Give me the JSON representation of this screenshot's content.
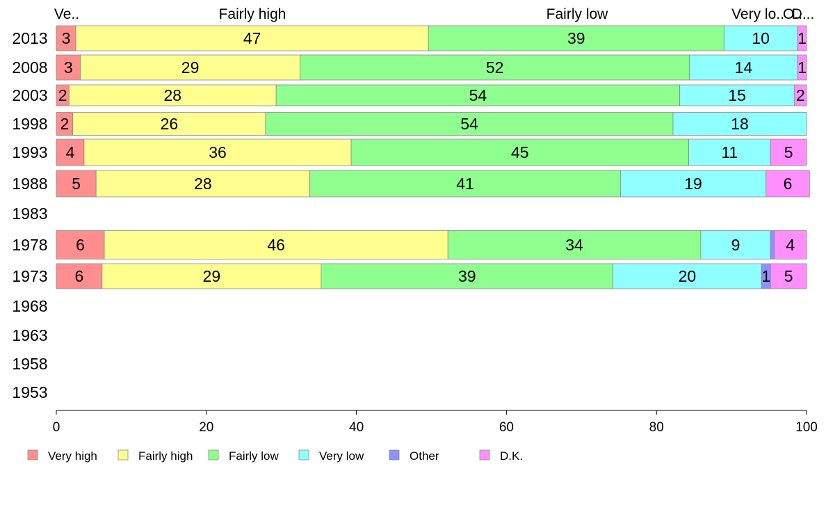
{
  "chart_data": {
    "type": "bar",
    "orientation": "horizontal",
    "stacked": true,
    "categories": [
      "2013",
      "2008",
      "2003",
      "1998",
      "1993",
      "1988",
      "1983",
      "1978",
      "1973",
      "1968",
      "1963",
      "1958",
      "1953"
    ],
    "series": [
      {
        "name": "Very high",
        "color": "#ff8f8f",
        "values": [
          2.6,
          3.2,
          1.7,
          2.2,
          3.7,
          5.3,
          null,
          6.4,
          6.1,
          null,
          null,
          null,
          null
        ],
        "labels": [
          "3",
          "3",
          "2",
          "2",
          "4",
          "5",
          "",
          "6",
          "6",
          "",
          "",
          "",
          ""
        ]
      },
      {
        "name": "Fairly high",
        "color": "#ffff8f",
        "values": [
          47.0,
          29.3,
          27.6,
          25.7,
          35.6,
          28.5,
          null,
          45.8,
          29.2,
          null,
          null,
          null,
          null
        ],
        "labels": [
          "47",
          "29",
          "28",
          "26",
          "36",
          "28",
          "",
          "46",
          "29",
          "",
          "",
          "",
          ""
        ]
      },
      {
        "name": "Fairly low",
        "color": "#8fff8f",
        "values": [
          39.4,
          51.9,
          53.8,
          54.3,
          45.0,
          41.4,
          null,
          33.7,
          38.9,
          null,
          null,
          null,
          null
        ],
        "labels": [
          "39",
          "52",
          "54",
          "54",
          "45",
          "41",
          "",
          "34",
          "39",
          "",
          "",
          "",
          ""
        ]
      },
      {
        "name": "Very low",
        "color": "#8fffff",
        "values": [
          9.8,
          14.4,
          15.3,
          17.8,
          10.9,
          19.4,
          null,
          9.3,
          19.8,
          null,
          null,
          null,
          null
        ],
        "labels": [
          "10",
          "14",
          "15",
          "18",
          "11",
          "19",
          "",
          "9",
          "20",
          "",
          "",
          "",
          ""
        ]
      },
      {
        "name": "Other",
        "color": "#8f8fff",
        "values": [
          0,
          0,
          0,
          0,
          0,
          0,
          null,
          0.5,
          1.2,
          null,
          null,
          null,
          null
        ],
        "labels": [
          "",
          "",
          "",
          "",
          "",
          "",
          "",
          "",
          "1",
          "",
          "",
          "",
          ""
        ]
      },
      {
        "name": "D.K.",
        "color": "#ff8fff",
        "values": [
          1.2,
          1.2,
          1.6,
          0,
          4.8,
          5.8,
          null,
          4.3,
          4.8,
          null,
          null,
          null,
          null
        ],
        "labels": [
          "1",
          "1",
          "2",
          "",
          "5",
          "6",
          "",
          "4",
          "5",
          "",
          "",
          "",
          ""
        ]
      }
    ],
    "top_labels": [
      "Ve..",
      "Fairly high",
      "Fairly low",
      "Very lo..",
      "O..",
      "D..."
    ],
    "xlim": [
      0,
      100
    ],
    "xticks": [
      "0",
      "20",
      "40",
      "60",
      "80",
      "100"
    ],
    "grid": false,
    "legend_position": "bottom-left"
  }
}
